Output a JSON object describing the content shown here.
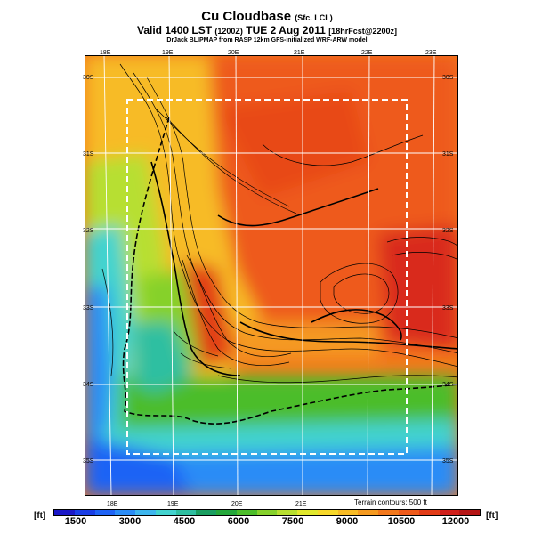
{
  "title": {
    "main": "Cu Cloudbase",
    "main_suffix": "(Sfc. LCL)",
    "valid_line": "Valid 1400 LST",
    "valid_utc": "(1200Z)",
    "valid_date": "TUE 2 Aug 2011",
    "fcst": "[18hrFcst@2200z]",
    "model_line": "DrJack BLIPMAP from RASP 12km GFS-initialized WRF-ARW model"
  },
  "map": {
    "top_lon_labels": [
      "18E",
      "19E",
      "20E",
      "21E",
      "22E",
      "23E"
    ],
    "bottom_lon_labels": [
      "18E",
      "19E",
      "20E",
      "21E"
    ],
    "left_lat_labels": [
      "30S",
      "31S",
      "32S",
      "33S",
      "34S",
      "35S"
    ],
    "right_lat_labels": [
      "30S",
      "31S",
      "32S",
      "33S",
      "34S",
      "35S"
    ],
    "terrain_note": "Terrain contours: 500 ft"
  },
  "colorbar": {
    "unit_left": "[ft]",
    "unit_right": "[ft]",
    "labels": [
      "1500",
      "3000",
      "4500",
      "6000",
      "7500",
      "9000",
      "10500",
      "12000"
    ],
    "colors": [
      "#1b18c8",
      "#1a3ee6",
      "#1f63f5",
      "#2a8cf6",
      "#3eb6ee",
      "#43d3cf",
      "#2fbfa1",
      "#1a9e60",
      "#24a73a",
      "#4cbd2a",
      "#86d12c",
      "#b7df30",
      "#e1e82d",
      "#f7d82a",
      "#f7bb25",
      "#f59a20",
      "#f2781c",
      "#ee5a1a",
      "#e23c18",
      "#cf1f1a",
      "#b51515"
    ]
  }
}
